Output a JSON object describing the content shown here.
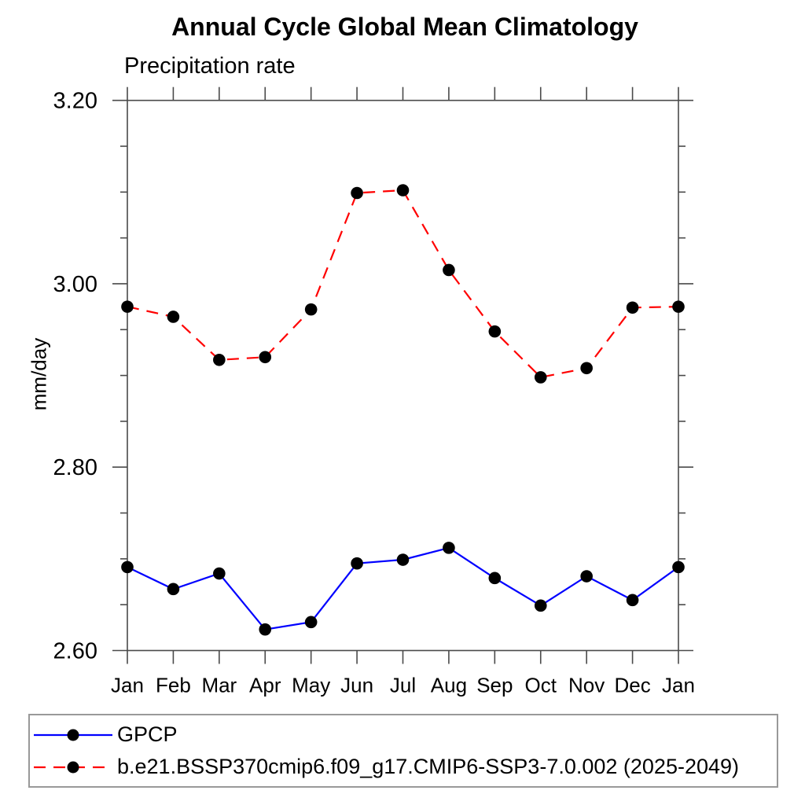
{
  "chart_data": {
    "type": "line",
    "title": "Annual Cycle Global Mean Climatology",
    "subtitle": "Precipitation rate",
    "xlabel": "",
    "ylabel": "mm/day",
    "categories": [
      "Jan",
      "Feb",
      "Mar",
      "Apr",
      "May",
      "Jun",
      "Jul",
      "Aug",
      "Sep",
      "Oct",
      "Nov",
      "Dec",
      "Jan"
    ],
    "series": [
      {
        "name": "GPCP",
        "color": "#0000ff",
        "style": "solid",
        "dash": "none",
        "marker": "filled-circle",
        "marker_color": "#000000",
        "values": [
          2.691,
          2.667,
          2.684,
          2.623,
          2.631,
          2.695,
          2.699,
          2.712,
          2.679,
          2.649,
          2.681,
          2.655,
          2.691
        ]
      },
      {
        "name": "b.e21.BSSP370cmip6.f09_g17.CMIP6-SSP3-7.0.002 (2025-2049)",
        "color": "#ff0000",
        "style": "dashed",
        "dash": "15 10",
        "marker": "filled-circle",
        "marker_color": "#000000",
        "values": [
          2.975,
          2.964,
          2.917,
          2.92,
          2.972,
          3.099,
          3.102,
          3.015,
          2.948,
          2.898,
          2.908,
          2.974,
          2.975
        ]
      }
    ],
    "ylim": [
      2.6,
      3.2
    ],
    "yticks_major": [
      2.6,
      2.8,
      3.0,
      3.2
    ],
    "ytick_labels": [
      "2.60",
      "2.80",
      "3.00",
      "3.20"
    ],
    "yminor_step": 0.05,
    "grid": false,
    "tick_direction": "out",
    "axis_color": "#4a4a4a",
    "legend_position": "bottom-left-box"
  }
}
